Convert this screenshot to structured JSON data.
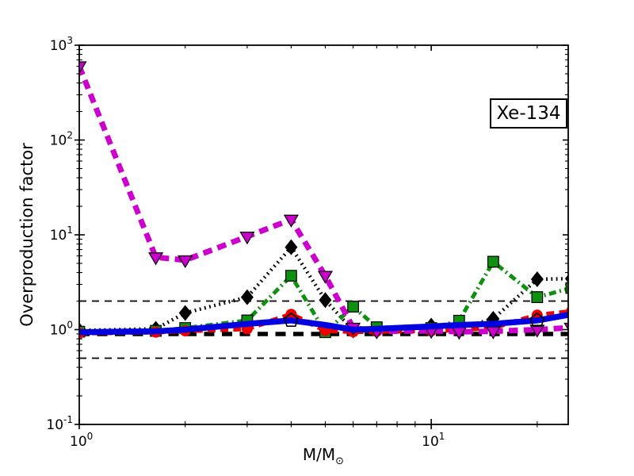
{
  "figure": {
    "background": "#ffffff"
  },
  "annotation": {
    "label": "Xe-134"
  },
  "axes": {
    "ylabel": "Overproduction factor",
    "xlabel_main": "M/M",
    "xlabel_sub": "⊙"
  },
  "chart_data": {
    "type": "line",
    "title": "",
    "xlabel": "M/M⊙",
    "ylabel": "Overproduction factor",
    "annotation": "Xe-134",
    "x_scale": "log",
    "y_scale": "log",
    "xlim": [
      1,
      24.5
    ],
    "ylim": [
      0.1,
      1000
    ],
    "grid": false,
    "legend": "none",
    "x_major_ticks": [
      {
        "value": 1,
        "base": "10",
        "exp": "0"
      },
      {
        "value": 10,
        "base": "10",
        "exp": "1"
      }
    ],
    "y_major_ticks": [
      {
        "value": 0.1,
        "base": "10",
        "exp": "-1"
      },
      {
        "value": 1,
        "base": "10",
        "exp": "0"
      },
      {
        "value": 10,
        "base": "10",
        "exp": "1"
      },
      {
        "value": 100,
        "base": "10",
        "exp": "2"
      },
      {
        "value": 1000,
        "base": "10",
        "exp": "3"
      }
    ],
    "x": [
      1,
      1.65,
      2,
      3,
      4,
      5,
      6,
      7,
      10,
      12,
      15,
      20,
      25
    ],
    "series": [
      {
        "name": "black-dotted-diamonds",
        "color": "#000000",
        "line_style": "dotted",
        "line_width": 4.5,
        "marker": "diamond",
        "values": [
          0.98,
          1.02,
          1.5,
          2.2,
          7.4,
          2.05,
          0.98,
          0.97,
          1.1,
          1.04,
          1.3,
          3.4,
          3.45
        ]
      },
      {
        "name": "green-dashdot-squares",
        "color": "#109010",
        "line_style": "dashdot",
        "line_width": 5,
        "marker": "square",
        "values": [
          0.95,
          0.97,
          1.04,
          1.25,
          3.7,
          0.94,
          1.75,
          1.06,
          1.04,
          1.24,
          5.2,
          2.2,
          2.75
        ]
      },
      {
        "name": "red-dashed-circles",
        "color": "#ee0000",
        "line_style": "dashed",
        "line_width": 6,
        "marker": "circle",
        "values": [
          0.92,
          0.94,
          0.97,
          1.02,
          1.45,
          0.98,
          0.95,
          0.96,
          0.97,
          1.0,
          1.05,
          1.42,
          1.55
        ]
      },
      {
        "name": "magenta-dashed-triangles",
        "color": "#cc00cc",
        "line_style": "dashed",
        "line_width": 7,
        "marker": "triangle-down",
        "values": [
          600,
          5.8,
          5.4,
          9.6,
          14.5,
          3.7,
          1.05,
          0.96,
          0.97,
          0.95,
          0.96,
          1.0,
          1.05
        ]
      },
      {
        "name": "blue-solid-pentagons",
        "color": "#0000e0",
        "line_style": "solid",
        "line_width": 7.5,
        "marker": "pentagon-open",
        "marker_at": [
          4,
          20
        ],
        "values": [
          0.94,
          0.96,
          1.0,
          1.15,
          1.25,
          1.12,
          1.0,
          1.02,
          1.08,
          1.12,
          1.15,
          1.25,
          1.45
        ]
      }
    ],
    "reference_lines": [
      {
        "y": 2,
        "style": "dashed-thin"
      },
      {
        "y": 0.9,
        "style": "dashed-thick"
      },
      {
        "y": 0.5,
        "style": "dashed-thin"
      }
    ]
  }
}
